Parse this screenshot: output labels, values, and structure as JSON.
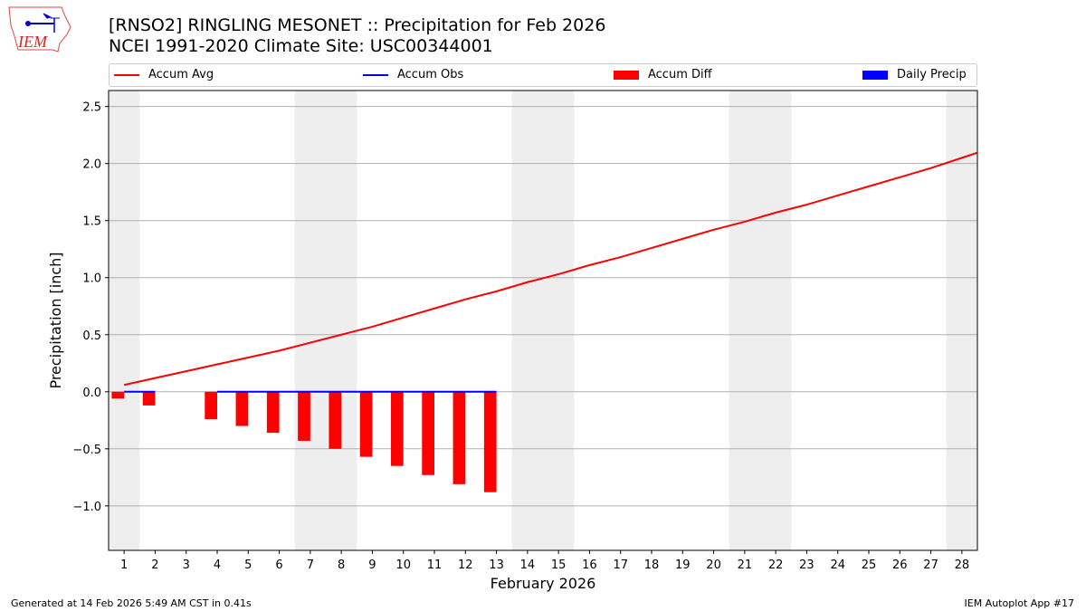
{
  "header": {
    "title": "[RNSO2] RINGLING MESONET :: Precipitation for Feb 2026",
    "subtitle": "NCEI 1991-2020 Climate Site: USC00344001",
    "logo_text": "IEM"
  },
  "footer": {
    "left": "Generated at 14 Feb 2026 5:49 AM CST in 0.41s",
    "right": "IEM Autoplot App #17"
  },
  "chart_data": {
    "type": "bar+line",
    "xlabel": "February 2026",
    "ylabel": "Precipitation [inch]",
    "xlim": [
      0.5,
      28.5
    ],
    "ylim": [
      -1.39,
      2.64
    ],
    "xticks": [
      1,
      2,
      3,
      4,
      5,
      6,
      7,
      8,
      9,
      10,
      11,
      12,
      13,
      14,
      15,
      16,
      17,
      18,
      19,
      20,
      21,
      22,
      23,
      24,
      25,
      26,
      27,
      28
    ],
    "yticks": [
      -1.0,
      -0.5,
      0.0,
      0.5,
      1.0,
      1.5,
      2.0,
      2.5
    ],
    "ytick_labels": [
      "−1.0",
      "−0.5",
      "0.0",
      "0.5",
      "1.0",
      "1.5",
      "2.0",
      "2.5"
    ],
    "grid": "horizontal",
    "weekend_shading": [
      [
        0.5,
        1.5
      ],
      [
        6.5,
        8.5
      ],
      [
        13.5,
        15.5
      ],
      [
        20.5,
        22.5
      ],
      [
        27.5,
        28.5
      ]
    ],
    "legend": {
      "placement": "top",
      "entries": [
        "Accum Avg",
        "Accum Obs",
        "Accum Diff",
        "Daily Precip"
      ]
    },
    "colors": {
      "avg": "#ff0000",
      "obs": "#0000ff",
      "diff": "#ff0000",
      "daily": "#0000ff",
      "shade": "#eeeeee"
    },
    "accum_avg": {
      "days": [
        1,
        2,
        3,
        4,
        5,
        6,
        7,
        8,
        9,
        10,
        11,
        12,
        13,
        14,
        15,
        16,
        17,
        18,
        19,
        20,
        21,
        22,
        23,
        24,
        25,
        26,
        27,
        28,
        29
      ],
      "values": [
        0.06,
        0.12,
        0.18,
        0.24,
        0.3,
        0.36,
        0.43,
        0.5,
        0.57,
        0.65,
        0.73,
        0.81,
        0.88,
        0.96,
        1.03,
        1.11,
        1.18,
        1.26,
        1.34,
        1.42,
        1.49,
        1.57,
        1.64,
        1.72,
        1.8,
        1.88,
        1.96,
        2.05,
        2.14
      ]
    },
    "accum_obs": {
      "days": [
        1,
        2,
        3,
        4,
        5,
        6,
        7,
        8,
        9,
        10,
        11,
        12,
        13
      ],
      "values": [
        0,
        0,
        null,
        0,
        0,
        0,
        0,
        0,
        0,
        0,
        0,
        0,
        0
      ]
    },
    "accum_diff": {
      "days": [
        1,
        2,
        3,
        4,
        5,
        6,
        7,
        8,
        9,
        10,
        11,
        12,
        13
      ],
      "values": [
        -0.06,
        -0.12,
        null,
        -0.24,
        -0.3,
        -0.36,
        -0.43,
        -0.5,
        -0.57,
        -0.65,
        -0.73,
        -0.81,
        -0.88
      ]
    },
    "daily_precip": {
      "days": [
        1,
        2,
        4,
        5,
        6,
        7,
        8,
        9,
        10,
        11,
        12,
        13
      ],
      "values": [
        0,
        0,
        0,
        0,
        0,
        0,
        0,
        0,
        0,
        0,
        0,
        0
      ]
    }
  }
}
